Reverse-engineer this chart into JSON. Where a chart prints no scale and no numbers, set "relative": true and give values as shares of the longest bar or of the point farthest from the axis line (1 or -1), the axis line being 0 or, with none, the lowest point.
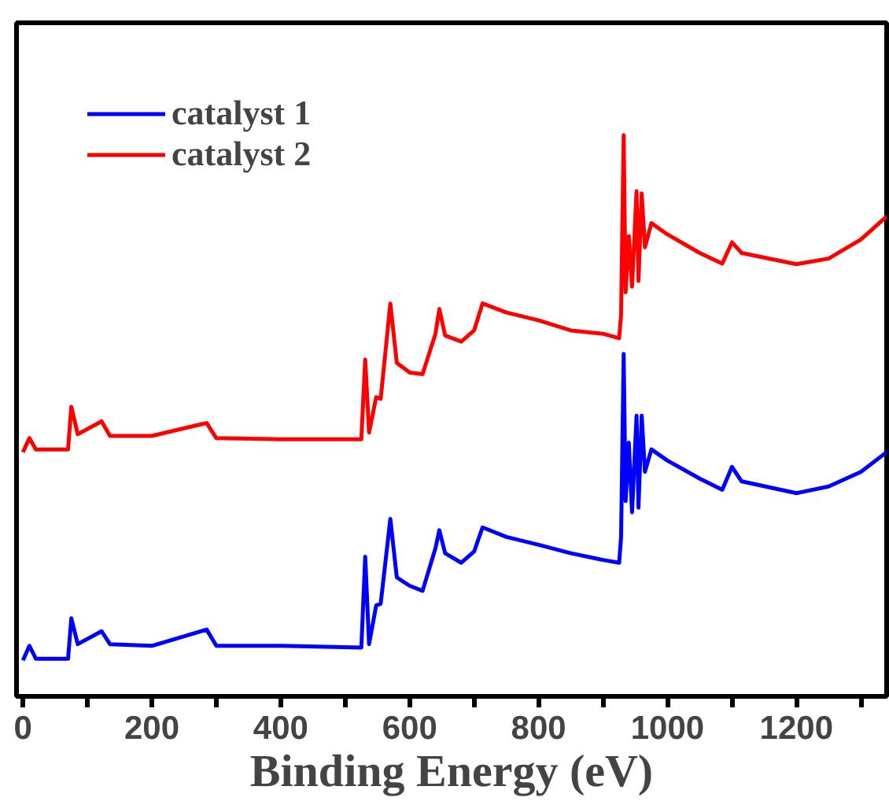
{
  "chart_data": {
    "type": "line",
    "relative": true,
    "xlabel": "Binding Energy (eV)",
    "xlim": [
      -10,
      1340
    ],
    "xticks": [
      0,
      {
        "value": 100,
        "label": null
      },
      200,
      {
        "value": 300,
        "label": null
      },
      400,
      {
        "value": 500,
        "label": null
      },
      600,
      {
        "value": 700,
        "label": null
      },
      800,
      {
        "value": 900,
        "label": null
      },
      1000,
      {
        "value": 1100,
        "label": null
      },
      1200,
      {
        "value": 1300,
        "label": null
      }
    ],
    "x": [
      0,
      10,
      20,
      70,
      75,
      85,
      122,
      135,
      200,
      285,
      300,
      400,
      525,
      531,
      537,
      548,
      555,
      570,
      580,
      600,
      620,
      640,
      646,
      655,
      680,
      700,
      713,
      750,
      800,
      850,
      900,
      925,
      928,
      932,
      935,
      940,
      945,
      952,
      955,
      960,
      965,
      975,
      1000,
      1050,
      1085,
      1100,
      1115,
      1200,
      1250,
      1300,
      1340
    ],
    "series": [
      {
        "name": "catalyst 1",
        "color": "#0000ff",
        "values": [
          0.064,
          0.09,
          0.067,
          0.067,
          0.139,
          0.093,
          0.116,
          0.093,
          0.09,
          0.119,
          0.09,
          0.09,
          0.087,
          0.249,
          0.093,
          0.162,
          0.165,
          0.316,
          0.212,
          0.197,
          0.188,
          0.264,
          0.296,
          0.255,
          0.238,
          0.258,
          0.301,
          0.284,
          0.27,
          0.255,
          0.243,
          0.238,
          0.284,
          0.61,
          0.348,
          0.452,
          0.328,
          0.5,
          0.336,
          0.5,
          0.4,
          0.44,
          0.42,
          0.388,
          0.368,
          0.409,
          0.383,
          0.362,
          0.374,
          0.4,
          0.435
        ]
      },
      {
        "name": "catalyst 2",
        "color": "#ff0000",
        "values": [
          0.435,
          0.46,
          0.44,
          0.44,
          0.516,
          0.467,
          0.49,
          0.464,
          0.464,
          0.487,
          0.46,
          0.458,
          0.458,
          0.6,
          0.47,
          0.533,
          0.53,
          0.7,
          0.594,
          0.577,
          0.574,
          0.646,
          0.69,
          0.643,
          0.632,
          0.652,
          0.7,
          0.684,
          0.67,
          0.652,
          0.646,
          0.638,
          0.68,
          1.0,
          0.72,
          0.82,
          0.73,
          0.9,
          0.74,
          0.896,
          0.8,
          0.843,
          0.823,
          0.79,
          0.771,
          0.809,
          0.79,
          0.77,
          0.78,
          0.814,
          0.855
        ]
      }
    ],
    "legend": "top left",
    "grid": false,
    "line_style": "solid",
    "marker": "none"
  }
}
